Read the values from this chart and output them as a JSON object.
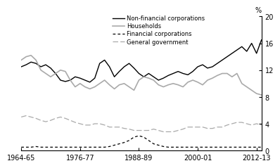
{
  "years": [
    1964,
    1965,
    1966,
    1967,
    1968,
    1969,
    1970,
    1971,
    1972,
    1973,
    1974,
    1975,
    1976,
    1977,
    1978,
    1979,
    1980,
    1981,
    1982,
    1983,
    1984,
    1985,
    1986,
    1987,
    1988,
    1989,
    1990,
    1991,
    1992,
    1993,
    1994,
    1995,
    1996,
    1997,
    1998,
    1999,
    2000,
    2001,
    2002,
    2003,
    2004,
    2005,
    2006,
    2007,
    2008,
    2009,
    2010,
    2011,
    2012,
    2013
  ],
  "x_tick_labels": [
    "1964-65",
    "1976-77",
    "1988-89",
    "2000-01",
    "2012-13"
  ],
  "x_tick_positions": [
    1964,
    1976,
    1988,
    2000,
    2012
  ],
  "non_financial": [
    12.5,
    12.8,
    13.2,
    13.0,
    12.5,
    12.8,
    12.3,
    11.5,
    10.5,
    10.3,
    10.5,
    11.0,
    10.8,
    10.5,
    10.2,
    10.8,
    13.0,
    13.5,
    12.5,
    11.0,
    11.8,
    12.5,
    13.0,
    12.3,
    11.5,
    11.0,
    11.5,
    11.0,
    10.5,
    10.8,
    11.2,
    11.5,
    11.8,
    11.5,
    11.3,
    11.8,
    12.5,
    12.8,
    12.3,
    12.5,
    13.0,
    13.5,
    14.0,
    14.5,
    15.0,
    15.5,
    14.8,
    16.0,
    14.5,
    16.5
  ],
  "households": [
    13.5,
    14.0,
    14.2,
    13.5,
    12.0,
    11.5,
    11.0,
    11.5,
    12.0,
    11.8,
    10.5,
    9.5,
    10.0,
    9.5,
    9.2,
    9.5,
    10.0,
    10.5,
    9.8,
    9.2,
    9.8,
    10.0,
    9.5,
    9.0,
    10.5,
    11.0,
    10.8,
    10.5,
    9.8,
    9.5,
    9.8,
    10.0,
    9.8,
    9.5,
    10.2,
    10.5,
    10.2,
    9.8,
    10.5,
    10.8,
    11.2,
    11.5,
    11.5,
    11.0,
    11.5,
    10.0,
    9.5,
    9.0,
    8.5,
    8.3
  ],
  "financial": [
    0.5,
    0.5,
    0.5,
    0.6,
    0.5,
    0.5,
    0.5,
    0.5,
    0.5,
    0.5,
    0.5,
    0.5,
    0.5,
    0.5,
    0.5,
    0.5,
    0.5,
    0.5,
    0.6,
    0.8,
    1.0,
    1.2,
    1.5,
    2.0,
    2.2,
    2.0,
    1.5,
    1.0,
    0.8,
    0.6,
    0.5,
    0.5,
    0.5,
    0.5,
    0.5,
    0.5,
    0.5,
    0.5,
    0.5,
    0.5,
    0.5,
    0.5,
    0.5,
    0.5,
    0.5,
    0.5,
    0.5,
    0.5,
    0.5,
    0.5
  ],
  "general_govt": [
    5.0,
    5.2,
    5.0,
    4.8,
    4.5,
    4.3,
    4.5,
    4.8,
    5.0,
    4.8,
    4.5,
    4.2,
    4.0,
    3.8,
    3.8,
    4.0,
    4.0,
    3.8,
    3.5,
    3.5,
    3.5,
    3.3,
    3.2,
    3.0,
    3.0,
    3.0,
    3.0,
    3.2,
    3.0,
    2.8,
    2.8,
    2.8,
    3.0,
    3.2,
    3.5,
    3.5,
    3.5,
    3.5,
    3.3,
    3.3,
    3.5,
    3.5,
    3.8,
    4.0,
    4.2,
    4.2,
    4.0,
    3.8,
    4.0,
    3.8
  ],
  "ylim": [
    0,
    20
  ],
  "yticks": [
    0,
    4,
    8,
    12,
    16,
    20
  ],
  "ylabel": "%",
  "non_financial_color": "#000000",
  "households_color": "#aaaaaa",
  "financial_color": "#000000",
  "general_govt_color": "#aaaaaa",
  "background_color": "#ffffff",
  "legend_labels": [
    "Non-financial corporations",
    "Households",
    "Financial corporations",
    "General government"
  ]
}
